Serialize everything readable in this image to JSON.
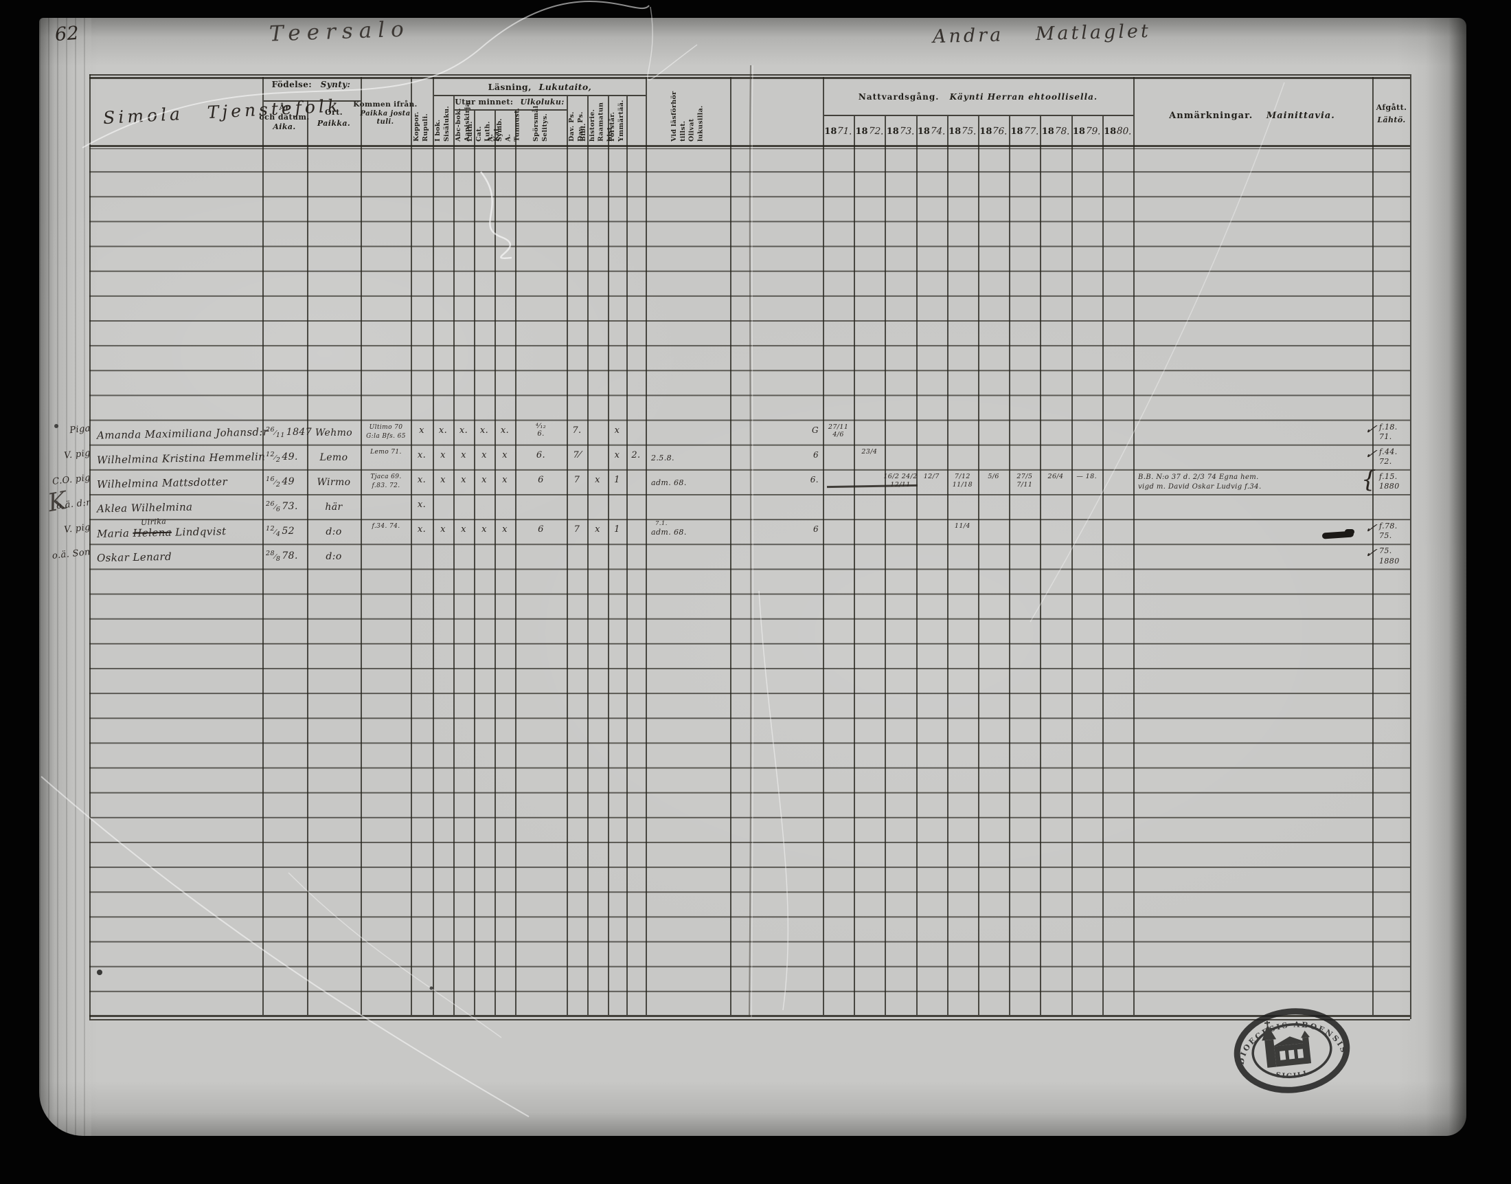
{
  "page": {
    "number": "62",
    "title_left": "Teersalo",
    "title_right": "Andra Matlaglet"
  },
  "table": {
    "col1_heading": "Simola Tjenstefolk",
    "headers": {
      "fodelse_sv": "Födelse:",
      "fodelse_fi": "Synty:",
      "ar_l1": "År",
      "ar_l2": "och datum.",
      "ar_l3": "Aika.",
      "ort_l1": "Ort.",
      "ort_l2": "Paikka.",
      "kommen_l1": "Kommen ifrån.",
      "kommen_l2": "Paikka josta",
      "kommen_l3": "tuli.",
      "lasning_sv": "Läsning,",
      "lasning_fi": "Lukutaito,",
      "utur_sv": "Utur minnet:",
      "utur_fi": "Ulkoluku:",
      "rotated": [
        "Koppor.\nRupuli.",
        "I bok.\nSisäluku.",
        "Abc-bok.\nAapiskirja.",
        "Luth. Cat.\nLuth. Kat.",
        "A. Symb.\nA. Tunnust.",
        "Spörsmål.\nSelitys.",
        "Dav. Ps.\nDav. Ps.",
        "Bibl. historie.\nRaamatun hist.",
        "Förstår.\nYmmärtää.",
        ""
      ],
      "tillst": "Vid läsförhör tillst.\nOlivat lukusilla.",
      "nattvard_sv": "Nattvardsgång.",
      "nattvard_fi": "Käynti Herran ehtoollisella.",
      "year_prefix": "18",
      "years": [
        "71.",
        "72.",
        "73.",
        "74.",
        "75.",
        "76.",
        "77.",
        "78.",
        "79.",
        "80."
      ],
      "anm_sv": "Anmärkningar.",
      "anm_fi": "Mainittavia.",
      "afgatt_l1": "Afgått.",
      "afgatt_l2": "Lähtö."
    },
    "rows": [
      {
        "margin": "Piga",
        "name": "Amanda Maximiliana Johansd:r",
        "b_d": "26",
        "b_m": "11",
        "b_y": "1847",
        "ort": "Wehmo",
        "kommen": "Ultimo 70\nG:la Bfs. 65",
        "marks": [
          "x",
          "x.",
          "x.",
          "x.",
          "x.",
          "⁴⁄₁₂\n6.",
          "7.",
          "",
          "x",
          ""
        ],
        "wide1": "",
        "wide1_sup": "",
        "wide2": "G",
        "years": [
          "27/11\n4/6",
          "",
          "",
          "",
          "",
          "",
          "",
          "",
          "",
          ""
        ],
        "remark": "",
        "af_check": "✓",
        "afgatt": "f.18.\n71."
      },
      {
        "margin": "V. pig",
        "name": "Wilhelmina Kristina Hemmelin",
        "b_d": "12",
        "b_m": "2",
        "b_y": "49.",
        "ort": "Lemo",
        "kommen": "Lemo 71.",
        "marks": [
          "x.",
          "x",
          "x",
          "x",
          "x",
          "6.",
          "7⁄",
          "",
          "x",
          "2."
        ],
        "wide1": "2.5.8.",
        "wide1_sup": "",
        "wide2": "6",
        "years": [
          "",
          "23/4",
          "",
          "",
          "",
          "",
          "",
          "",
          "",
          ""
        ],
        "remark": "",
        "af_check": "✓",
        "afgatt": "f.44.\n72."
      },
      {
        "margin": "C.O. pig",
        "name": "Wilhelmina Mattsdotter",
        "b_d": "16",
        "b_m": "2",
        "b_y": "49",
        "ort": "Wirmo",
        "kommen": "Tjaca 69.\nf.83. 72.",
        "marks": [
          "x.",
          "x",
          "x",
          "x",
          "x",
          "6",
          "7",
          "x",
          "1",
          ""
        ],
        "wide1": "adm. 68.",
        "wide1_sup": "",
        "wide2": "6.",
        "dash": true,
        "years": [
          "",
          "",
          "16/2 24/2\n12/11",
          "12/7",
          "7/12\n11/18",
          "5/6",
          "27/5\n7/11",
          "26/4",
          "— 18.",
          ""
        ],
        "remark": "B.B. N:o 37 d. 2/3 74 Egna hem.\nvigd m. David Oskar Ludvig f.34.",
        "af_brace": "{",
        "afgatt": "f.15.\n1880"
      },
      {
        "margin": "o.ä. d:r",
        "flourish": "K",
        "name": "Aklea Wilhelmina",
        "b_d": "26",
        "b_m": "6",
        "b_y": "73.",
        "ort": "här",
        "kommen": "",
        "marks": [
          "x.",
          "",
          "",
          "",
          "",
          "",
          "",
          "",
          "",
          ""
        ],
        "wide1": "",
        "wide1_sup": "",
        "wide2": "",
        "years": [
          "",
          "",
          "",
          "",
          "",
          "",
          "",
          "",
          "",
          ""
        ],
        "remark": "",
        "afgatt": ""
      },
      {
        "margin": "V. pig",
        "name_pre": "Maria ",
        "name_struck": "Helena",
        "name_ins": "Ulrika",
        "name_post": " Lindqvist",
        "b_d": "12",
        "b_m": "4",
        "b_y": "52",
        "ort": "d:o",
        "kommen": "f.34. 74.",
        "marks": [
          "x.",
          "x",
          "x",
          "x",
          "x",
          "6",
          "7",
          "x",
          "1",
          ""
        ],
        "wide1": "adm. 68.",
        "wide1_sup": "7.1.",
        "wide2": "6",
        "years": [
          "",
          "",
          "",
          "",
          "11/4",
          "",
          "",
          "",
          "",
          ""
        ],
        "remark": "",
        "blot": true,
        "af_check": "✓",
        "afgatt": "f.78.\n75."
      },
      {
        "margin": "o.ä. Son",
        "name": "Oskar Lenard",
        "b_d": "28",
        "b_m": "8",
        "b_y": "78.",
        "ort": "d:o",
        "kommen": "",
        "marks": [
          "",
          "",
          "",
          "",
          "",
          "",
          "",
          "",
          "",
          ""
        ],
        "wide1": "",
        "wide1_sup": "",
        "wide2": "",
        "years": [
          "",
          "",
          "",
          "",
          "",
          "",
          "",
          "",
          "",
          ""
        ],
        "remark": "",
        "af_check": "✓",
        "afgatt": "75.\n1880"
      }
    ]
  },
  "stamp": {
    "arc_top": "DIOECESIS ABOENSIS",
    "arc_bottom": "SIGILL."
  }
}
